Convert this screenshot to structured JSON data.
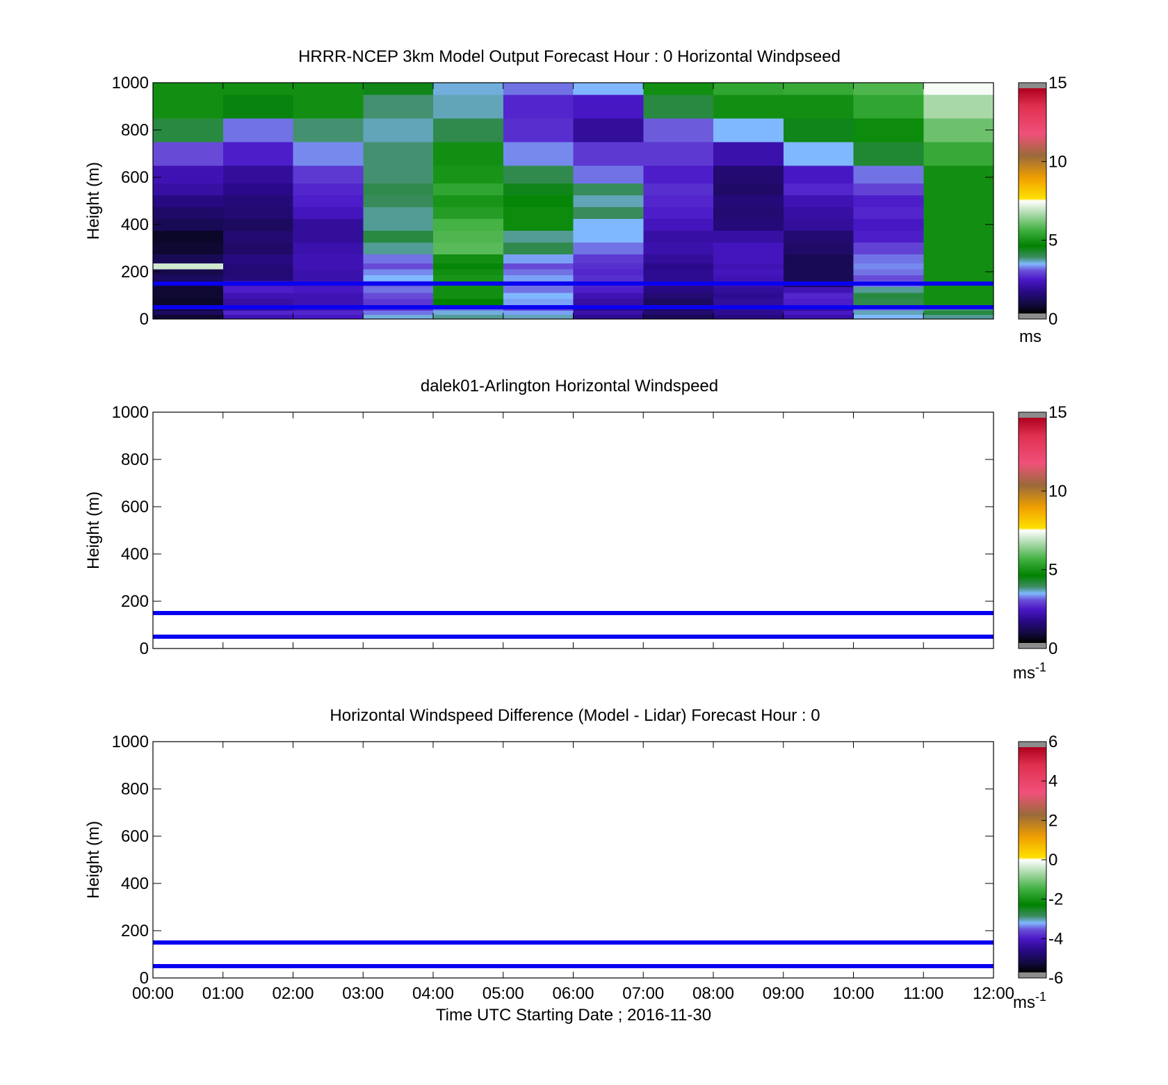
{
  "chart_data": [
    {
      "type": "heatmap",
      "title": "HRRR-NCEP 3km Model Output   Forecast Hour : 0 Horizontal Windpseed",
      "ylabel": "Height (m)",
      "xlabel": "",
      "x_ticks": [],
      "y_ticks": [
        "0",
        "200",
        "400",
        "600",
        "800",
        "1000"
      ],
      "ylim": [
        0,
        1000
      ],
      "xlim": [
        0,
        12
      ],
      "colorbar": {
        "label": "ms",
        "label_sup": "",
        "ticks": [
          "0",
          "5",
          "10",
          "15"
        ],
        "tick_values": [
          0,
          5,
          10,
          15
        ],
        "range": [
          0,
          15
        ]
      },
      "reference_lines": [
        {
          "height": 150,
          "color": "#0a00f0"
        },
        {
          "height": 50,
          "color": "#0a00f0"
        }
      ],
      "grid": false,
      "x_hours": [
        0,
        1,
        2,
        3,
        4,
        5,
        6,
        7,
        8,
        9,
        10,
        11
      ],
      "height_levels": [
        10,
        30,
        45,
        75,
        100,
        125,
        150,
        175,
        200,
        225,
        250,
        300,
        350,
        400,
        450,
        500,
        550,
        600,
        700,
        800,
        900,
        1000
      ],
      "values": [
        [
          0.5,
          2.0,
          2.2,
          3.4,
          3.6,
          3.5,
          1.6,
          0.9,
          1.4,
          1.9,
          3.3,
          3.6
        ],
        [
          1.0,
          2.4,
          2.4,
          3.0,
          3.4,
          3.2,
          1.9,
          1.2,
          1.6,
          2.2,
          3.5,
          4.0
        ],
        [
          0.6,
          1.7,
          2.0,
          2.5,
          3.0,
          2.7,
          1.5,
          1.0,
          1.6,
          1.7,
          3.0,
          3.7
        ],
        [
          0.4,
          1.8,
          2.0,
          2.6,
          4.5,
          3.2,
          1.8,
          1.0,
          1.7,
          2.3,
          3.9,
          4.8
        ],
        [
          0.5,
          2.0,
          2.0,
          2.8,
          4.8,
          3.3,
          2.0,
          1.2,
          1.6,
          2.4,
          4.0,
          4.8
        ],
        [
          0.5,
          2.3,
          2.2,
          3.0,
          4.8,
          3.0,
          2.3,
          1.4,
          1.7,
          2.0,
          3.6,
          4.8
        ],
        [
          0.6,
          2.2,
          2.1,
          2.9,
          4.8,
          3.0,
          2.4,
          1.5,
          1.9,
          1.0,
          3.0,
          4.8
        ],
        [
          1.0,
          1.3,
          1.9,
          3.3,
          4.9,
          3.2,
          2.5,
          1.6,
          2.0,
          0.9,
          2.8,
          4.8
        ],
        [
          0.8,
          1.2,
          1.9,
          3.1,
          4.8,
          3.0,
          2.4,
          1.6,
          2.1,
          0.9,
          3.0,
          4.8
        ],
        [
          7.0,
          1.3,
          2.0,
          2.8,
          4.6,
          2.8,
          2.5,
          1.5,
          2.0,
          0.9,
          3.1,
          4.8
        ],
        [
          0.9,
          1.4,
          2.0,
          3.0,
          4.8,
          3.2,
          2.6,
          1.7,
          2.1,
          0.9,
          3.0,
          4.8
        ],
        [
          0.5,
          1.1,
          1.9,
          3.6,
          5.8,
          3.9,
          3.0,
          1.9,
          2.1,
          1.1,
          2.7,
          4.8
        ],
        [
          0.4,
          1.2,
          1.7,
          4.0,
          5.7,
          3.6,
          3.3,
          1.8,
          1.8,
          1.2,
          2.3,
          4.8
        ],
        [
          0.9,
          1.0,
          1.7,
          3.6,
          5.6,
          4.7,
          3.3,
          2.1,
          1.3,
          1.7,
          2.2,
          4.8
        ],
        [
          1.1,
          1.2,
          2.1,
          3.6,
          5.1,
          4.7,
          3.8,
          2.3,
          1.2,
          1.8,
          2.4,
          4.8
        ],
        [
          1.4,
          1.3,
          2.3,
          3.8,
          4.9,
          4.6,
          3.5,
          2.4,
          1.3,
          2.0,
          2.3,
          4.8
        ],
        [
          1.8,
          1.5,
          2.4,
          3.9,
          5.3,
          4.3,
          3.8,
          2.5,
          1.1,
          2.4,
          2.7,
          4.8
        ],
        [
          2.0,
          1.7,
          2.6,
          3.7,
          4.9,
          3.9,
          3.0,
          2.3,
          1.2,
          2.2,
          3.0,
          4.8
        ],
        [
          2.8,
          2.3,
          3.1,
          3.7,
          4.8,
          3.1,
          2.6,
          2.6,
          1.9,
          3.3,
          4.1,
          5.4
        ],
        [
          4.0,
          3.0,
          3.7,
          3.5,
          3.9,
          2.5,
          1.7,
          2.9,
          3.3,
          4.3,
          4.7,
          6.0
        ],
        [
          4.8,
          4.4,
          4.8,
          3.7,
          3.5,
          2.4,
          2.2,
          4.0,
          4.8,
          4.8,
          5.3,
          6.6
        ],
        [
          4.8,
          4.8,
          4.8,
          4.3,
          3.4,
          3.0,
          3.3,
          4.8,
          5.3,
          5.4,
          5.7,
          7.4
        ]
      ]
    },
    {
      "type": "heatmap",
      "title": "dalek01-Arlington  Horizontal Windspeed",
      "ylabel": "Height (m)",
      "xlabel": "",
      "x_ticks": [],
      "y_ticks": [
        "0",
        "200",
        "400",
        "600",
        "800",
        "1000"
      ],
      "ylim": [
        0,
        1000
      ],
      "xlim": [
        0,
        12
      ],
      "colorbar": {
        "label": "ms",
        "label_sup": "-1",
        "ticks": [
          "0",
          "5",
          "10",
          "15"
        ],
        "tick_values": [
          0,
          5,
          10,
          15
        ],
        "range": [
          0,
          15
        ]
      },
      "reference_lines": [
        {
          "height": 150,
          "color": "#0a00f0"
        },
        {
          "height": 50,
          "color": "#0a00f0"
        }
      ],
      "grid": false,
      "values": []
    },
    {
      "type": "heatmap",
      "title": "Horizontal Windspeed Difference (Model - Lidar) Forecast Hour : 0",
      "ylabel": "Height (m)",
      "xlabel": "Time UTC  Starting Date ; 2016-11-30",
      "x_ticks": [
        "00:00",
        "01:00",
        "02:00",
        "03:00",
        "04:00",
        "05:00",
        "06:00",
        "07:00",
        "08:00",
        "09:00",
        "10:00",
        "11:00",
        "12:00"
      ],
      "y_ticks": [
        "0",
        "200",
        "400",
        "600",
        "800",
        "1000"
      ],
      "ylim": [
        0,
        1000
      ],
      "xlim": [
        0,
        12
      ],
      "colorbar": {
        "label": "ms",
        "label_sup": "-1",
        "ticks": [
          "-6",
          "-4",
          "-2",
          "0",
          "2",
          "4",
          "6"
        ],
        "tick_values": [
          -6,
          -4,
          -2,
          0,
          2,
          4,
          6
        ],
        "range": [
          -6,
          6
        ]
      },
      "reference_lines": [
        {
          "height": 150,
          "color": "#0a00f0"
        },
        {
          "height": 50,
          "color": "#0a00f0"
        }
      ],
      "grid": false,
      "values": []
    }
  ]
}
